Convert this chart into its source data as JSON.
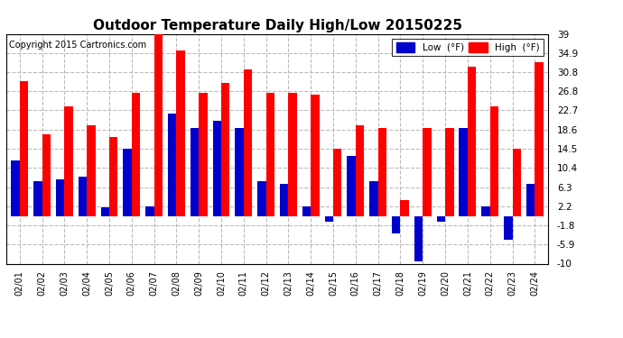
{
  "title": "Outdoor Temperature Daily High/Low 20150225",
  "copyright": "Copyright 2015 Cartronics.com",
  "legend_low": "Low  (°F)",
  "legend_high": "High  (°F)",
  "dates": [
    "02/01",
    "02/02",
    "02/03",
    "02/04",
    "02/05",
    "02/06",
    "02/07",
    "02/08",
    "02/09",
    "02/10",
    "02/11",
    "02/12",
    "02/13",
    "02/14",
    "02/15",
    "02/16",
    "02/17",
    "02/18",
    "02/19",
    "02/20",
    "02/21",
    "02/22",
    "02/23",
    "02/24"
  ],
  "high": [
    29.0,
    17.5,
    23.5,
    19.5,
    17.0,
    26.5,
    39.0,
    35.5,
    26.5,
    28.5,
    31.5,
    26.5,
    26.5,
    26.0,
    14.5,
    19.5,
    19.0,
    3.5,
    19.0,
    19.0,
    32.0,
    23.5,
    14.5,
    33.0
  ],
  "low": [
    12.0,
    7.5,
    8.0,
    8.5,
    2.0,
    14.5,
    2.2,
    22.0,
    19.0,
    20.5,
    19.0,
    7.5,
    7.0,
    2.2,
    -1.0,
    13.0,
    7.5,
    -3.5,
    -9.5,
    -1.0,
    19.0,
    2.2,
    -5.0,
    7.0
  ],
  "ylim": [
    -10.0,
    39.0
  ],
  "yticks": [
    39.0,
    34.9,
    30.8,
    26.8,
    22.7,
    18.6,
    14.5,
    10.4,
    6.3,
    2.2,
    -1.8,
    -5.9,
    -10.0
  ],
  "color_high": "#ff0000",
  "color_low": "#0000cc",
  "background_color": "#ffffff",
  "plot_bg_color": "#ffffff",
  "grid_color": "#bbbbbb",
  "title_fontsize": 11,
  "copyright_fontsize": 7,
  "bar_width": 0.38
}
